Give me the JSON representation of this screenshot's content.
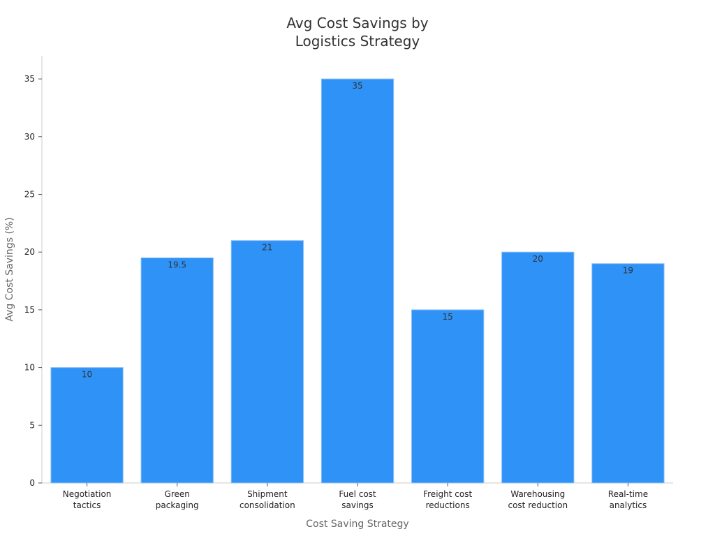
{
  "chart_data": {
    "type": "bar",
    "title_lines": [
      "Avg Cost Savings by",
      "Logistics Strategy"
    ],
    "xlabel": "Cost Saving Strategy",
    "ylabel": "Avg Cost Savings (%)",
    "categories": [
      [
        "Negotiation",
        "tactics"
      ],
      [
        "Green",
        "packaging"
      ],
      [
        "Shipment",
        "consolidation"
      ],
      [
        "Fuel cost",
        "savings"
      ],
      [
        "Freight cost",
        "reductions"
      ],
      [
        "Warehousing",
        "cost reduction"
      ],
      [
        "Real-time",
        "analytics"
      ]
    ],
    "values": [
      10,
      19.5,
      21,
      35,
      15,
      20,
      19
    ],
    "data_labels": [
      "10",
      "19.5",
      "21",
      "35",
      "15",
      "20",
      "19"
    ],
    "ylim": [
      0,
      37
    ],
    "yticks": [
      0,
      5,
      10,
      15,
      20,
      25,
      30,
      35
    ],
    "grid": false,
    "legend": "none",
    "colors": {
      "bar": "#2f92f7",
      "bar_edge": "#8fc1f7",
      "axis": "#cccccc"
    }
  }
}
